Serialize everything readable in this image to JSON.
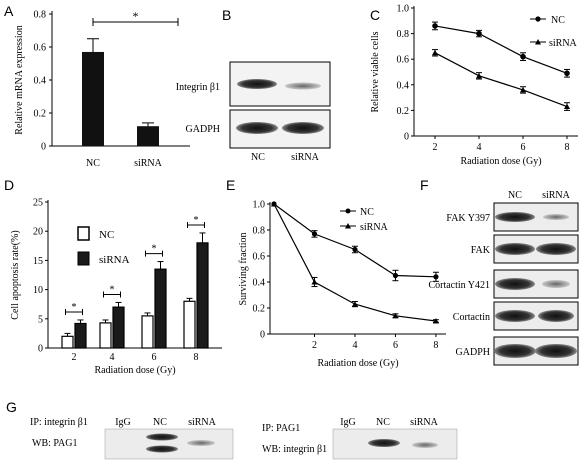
{
  "panels": {
    "A": "A",
    "B": "B",
    "C": "C",
    "D": "D",
    "E": "E",
    "F": "F",
    "G": "G"
  },
  "chart_data": [
    {
      "id": "A",
      "type": "bar",
      "categories": [
        "NC",
        "siRNA"
      ],
      "values": [
        0.57,
        0.12
      ],
      "errors": [
        0.08,
        0.02
      ],
      "ylabel": "Relative mRNA expression",
      "ylim": [
        0,
        0.8
      ],
      "yticks": [
        "0",
        "0.2",
        "0.4",
        "0.6",
        "0.8"
      ],
      "significance": "*"
    },
    {
      "id": "C",
      "type": "line",
      "x": [
        2,
        4,
        6,
        8
      ],
      "xticks": [
        "2",
        "4",
        "6",
        "8"
      ],
      "xlabel": "Radiation dose (Gy)",
      "ylabel": "Relative viable cells",
      "ylim": [
        0,
        1.0
      ],
      "yticks": [
        "0",
        "0.2",
        "0.4",
        "0.6",
        "0.8",
        "1.0"
      ],
      "series": [
        {
          "name": "NC",
          "values": [
            0.86,
            0.8,
            0.62,
            0.49
          ],
          "errors": [
            0.03,
            0.025,
            0.03,
            0.03
          ]
        },
        {
          "name": "siRNA",
          "values": [
            0.65,
            0.47,
            0.36,
            0.23
          ],
          "errors": [
            0.025,
            0.025,
            0.025,
            0.03
          ]
        }
      ]
    },
    {
      "id": "D",
      "type": "bar",
      "categories": [
        "2",
        "4",
        "6",
        "8"
      ],
      "xlabel": "Radiation dose (Gy)",
      "ylabel": "Cell apoptosis rate(%)",
      "ylim": [
        0,
        25
      ],
      "yticks": [
        "0",
        "5",
        "10",
        "15",
        "20",
        "25"
      ],
      "series": [
        {
          "name": "NC",
          "values": [
            2,
            4.3,
            5.5,
            8
          ],
          "errors": [
            0.5,
            0.5,
            0.5,
            0.5
          ]
        },
        {
          "name": "siRNA",
          "values": [
            4.2,
            7,
            13.5,
            18
          ],
          "errors": [
            0.6,
            0.8,
            1.3,
            1.7
          ]
        }
      ],
      "significance": [
        "*",
        "*",
        "*",
        "*"
      ]
    },
    {
      "id": "E",
      "type": "line",
      "x": [
        0,
        2,
        4,
        6,
        8
      ],
      "xticks": [
        "2",
        "4",
        "6",
        "8"
      ],
      "xlabel": "Radiation dose (Gy)",
      "ylabel": "Surviving fraction",
      "ylim": [
        0,
        1.0
      ],
      "yticks": [
        "0",
        "0.2",
        "0.4",
        "0.6",
        "0.8",
        "1.0"
      ],
      "series": [
        {
          "name": "NC",
          "values": [
            1.0,
            0.77,
            0.65,
            0.45,
            0.44
          ],
          "errors": [
            0,
            0.025,
            0.025,
            0.04,
            0.035
          ]
        },
        {
          "name": "siRNA",
          "values": [
            1.0,
            0.4,
            0.23,
            0.14,
            0.1
          ],
          "errors": [
            0,
            0.035,
            0.02,
            0.015,
            0.01
          ]
        }
      ]
    }
  ],
  "blotB": {
    "rows": [
      "Integrin β1",
      "GADPH"
    ],
    "lanes": [
      "NC",
      "siRNA"
    ]
  },
  "blotF": {
    "lanes": [
      "NC",
      "siRNA"
    ],
    "rows": [
      "FAK Y397",
      "FAK",
      "Cortactin Y421",
      "Cortactin",
      "GADPH"
    ]
  },
  "blotG": {
    "left": {
      "ip": "IP: integrin β1",
      "wb": "WB: PAG1",
      "lanes": [
        "IgG",
        "NC",
        "siRNA"
      ]
    },
    "right": {
      "ip": "IP: PAG1",
      "wb": "WB: integrin β1",
      "lanes": [
        "IgG",
        "NC",
        "siRNA"
      ]
    }
  }
}
